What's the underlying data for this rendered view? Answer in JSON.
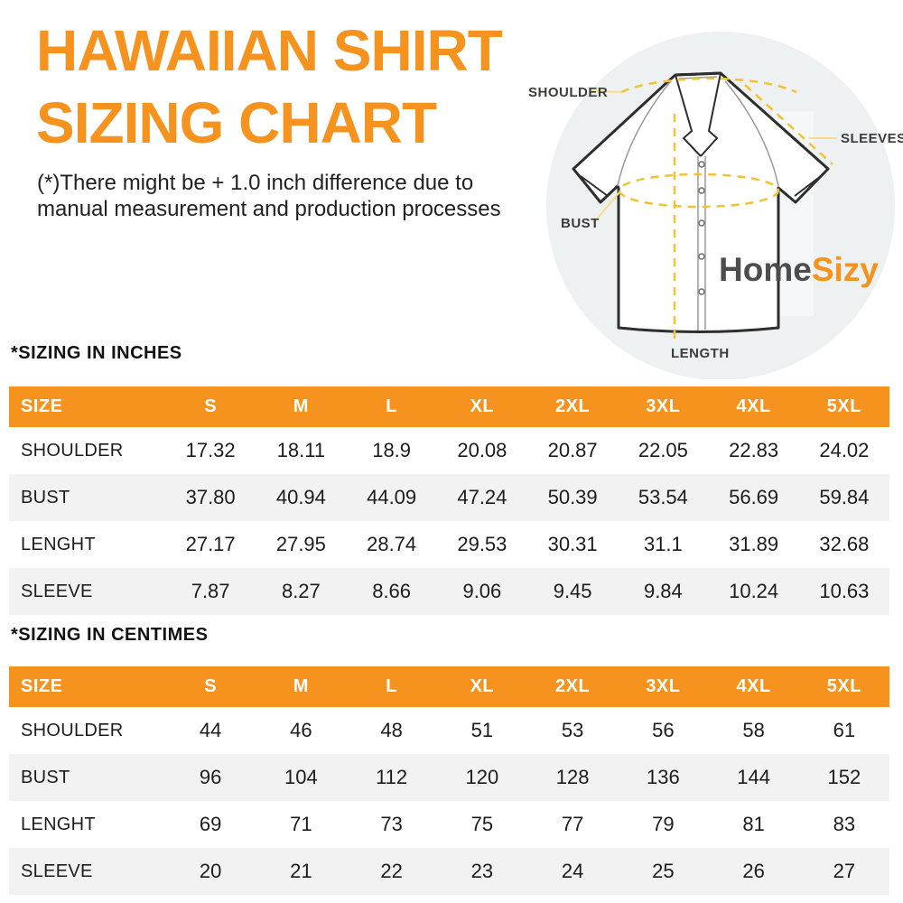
{
  "page": {
    "title": "HAWAIIAN SHIRT\nSIZING CHART",
    "subtitle": "(*)There might be + 1.0 inch difference due to\nmanual measurement and production processes"
  },
  "diagram": {
    "labels": {
      "shoulder": "SHOULDER",
      "sleeves": "SLEEVES",
      "bust": "BUST",
      "length": "LENGTH"
    },
    "logo": {
      "part1": "Home",
      "part2": "Sizy"
    }
  },
  "colors": {
    "accent_orange": "#F6921E",
    "logo_gray": "#4D4D4D",
    "dash_yellow": "#F2C230",
    "leader_yellow": "#F8DC8C",
    "circle_background": "#EDF1F1",
    "alt_row_gray": "#F2F2F2"
  },
  "tables": [
    {
      "section_label": "*SIZING IN INCHES",
      "headers": [
        "SIZE",
        "S",
        "M",
        "L",
        "XL",
        "2XL",
        "3XL",
        "4XL",
        "5XL"
      ],
      "rows": [
        {
          "label": "SHOULDER",
          "values": [
            "17.32",
            "18.11",
            "18.9",
            "20.08",
            "20.87",
            "22.05",
            "22.83",
            "24.02"
          ]
        },
        {
          "label": "BUST",
          "values": [
            "37.80",
            "40.94",
            "44.09",
            "47.24",
            "50.39",
            "53.54",
            "56.69",
            "59.84"
          ]
        },
        {
          "label": "LENGHT",
          "values": [
            "27.17",
            "27.95",
            "28.74",
            "29.53",
            "30.31",
            "31.1",
            "31.89",
            "32.68"
          ]
        },
        {
          "label": "SLEEVE",
          "values": [
            "7.87",
            "8.27",
            "8.66",
            "9.06",
            "9.45",
            "9.84",
            "10.24",
            "10.63"
          ]
        }
      ]
    },
    {
      "section_label": "*SIZING IN CENTIMES",
      "headers": [
        "SIZE",
        "S",
        "M",
        "L",
        "XL",
        "2XL",
        "3XL",
        "4XL",
        "5XL"
      ],
      "rows": [
        {
          "label": "SHOULDER",
          "values": [
            "44",
            "46",
            "48",
            "51",
            "53",
            "56",
            "58",
            "61"
          ]
        },
        {
          "label": "BUST",
          "values": [
            "96",
            "104",
            "112",
            "120",
            "128",
            "136",
            "144",
            "152"
          ]
        },
        {
          "label": "LENGHT",
          "values": [
            "69",
            "71",
            "73",
            "75",
            "77",
            "79",
            "81",
            "83"
          ]
        },
        {
          "label": "SLEEVE",
          "values": [
            "20",
            "21",
            "22",
            "23",
            "24",
            "25",
            "26",
            "27"
          ]
        }
      ]
    }
  ]
}
